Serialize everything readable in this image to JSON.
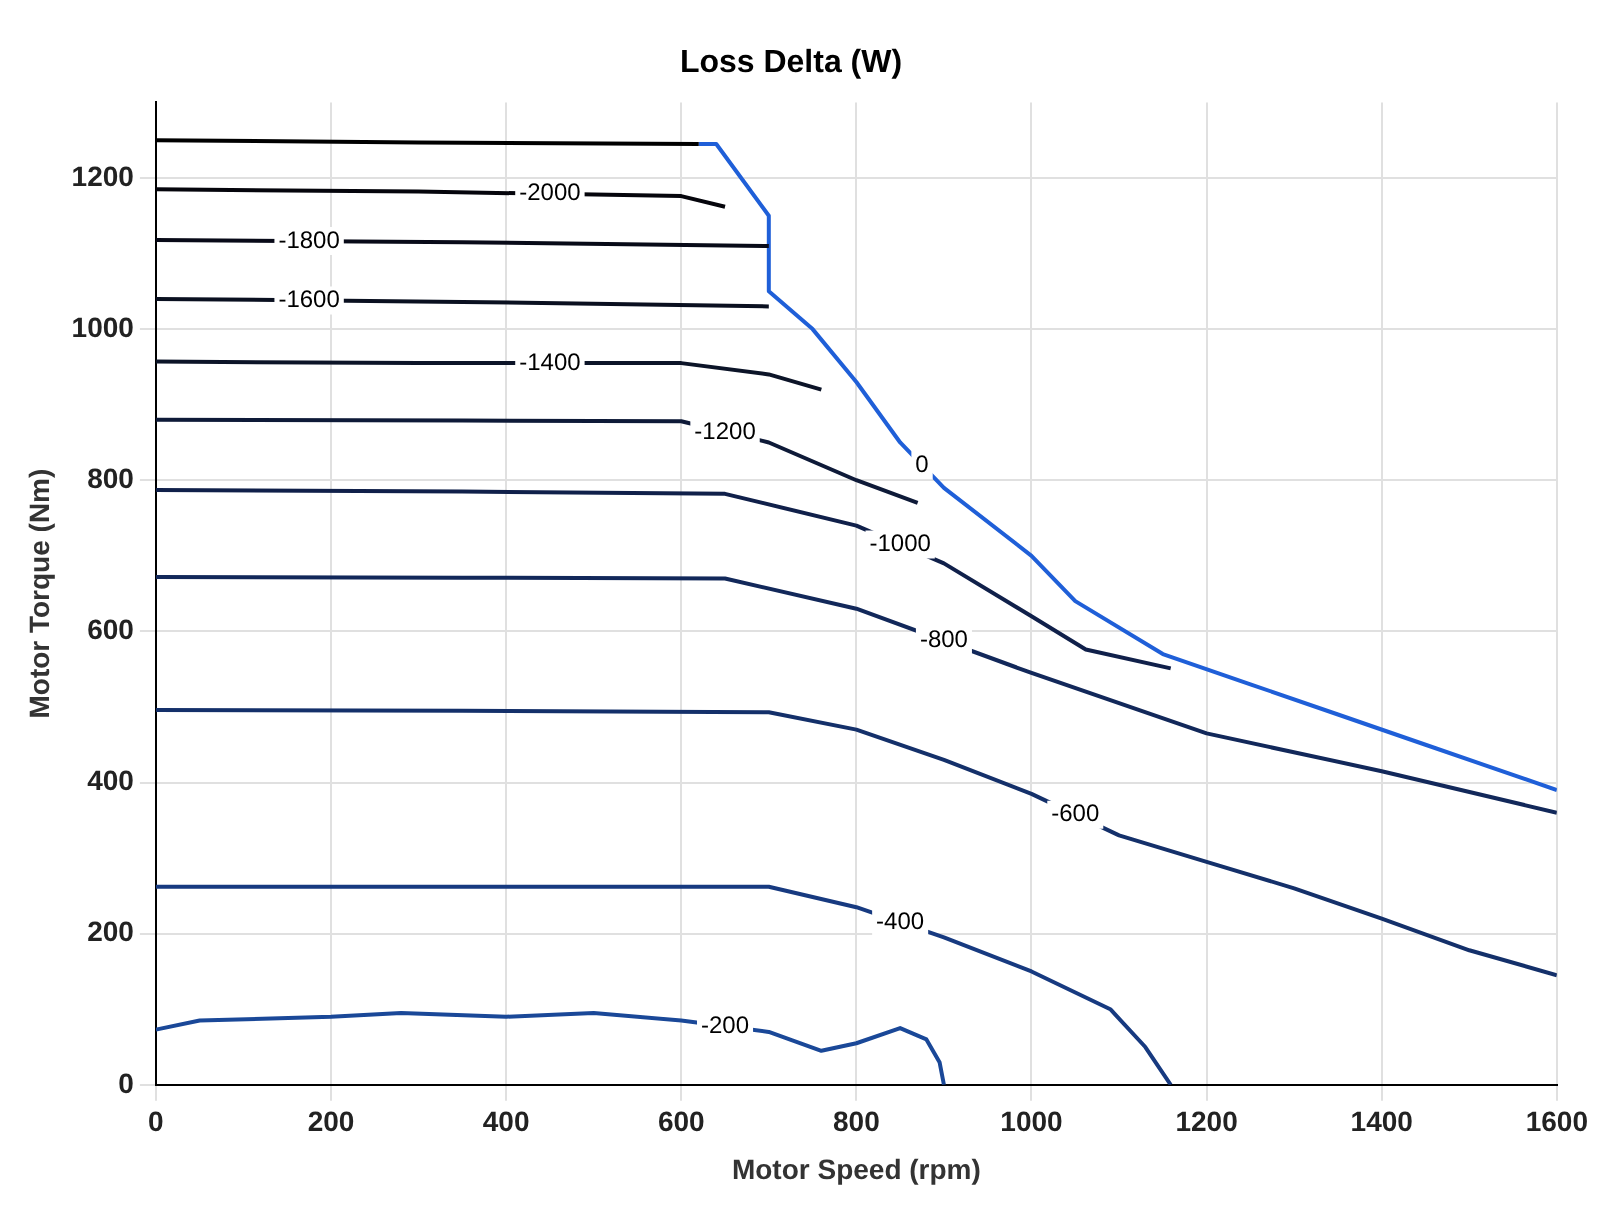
{
  "chart_data": {
    "type": "line",
    "title": "Loss Delta (W)",
    "xlabel": "Motor Speed (rpm)",
    "ylabel": "Motor Torque (Nm)",
    "xlim": [
      0,
      1600
    ],
    "ylim": [
      0,
      1300
    ],
    "xticks": [
      0,
      200,
      400,
      600,
      800,
      1000,
      1200,
      1400,
      1600
    ],
    "yticks": [
      0,
      200,
      400,
      600,
      800,
      1000,
      1200
    ],
    "grid": true,
    "legend": false,
    "marker": "none",
    "line_style": "solid",
    "series": [
      {
        "color": "#000000",
        "x": [
          0,
          300,
          620
        ],
        "values": [
          1250,
          1247,
          1245
        ]
      },
      {
        "name": "-2000",
        "color": "#05050c",
        "x": [
          0,
          300,
          600,
          650
        ],
        "values": [
          1185,
          1182,
          1176,
          1162
        ]
      },
      {
        "name": "-1800",
        "color": "#080a18",
        "x": [
          0,
          350,
          700
        ],
        "values": [
          1118,
          1115,
          1110
        ]
      },
      {
        "name": "-1600",
        "color": "#0a1020",
        "x": [
          0,
          350,
          700
        ],
        "values": [
          1040,
          1036,
          1030
        ]
      },
      {
        "name": "-1400",
        "color": "#0c1428",
        "x": [
          0,
          300,
          600,
          700,
          760
        ],
        "values": [
          957,
          955,
          955,
          940,
          920
        ]
      },
      {
        "name": "-1200",
        "color": "#0e1a38",
        "x": [
          0,
          350,
          600,
          700,
          800,
          870
        ],
        "values": [
          880,
          879,
          878,
          850,
          800,
          770
        ]
      },
      {
        "name": "-1000",
        "color": "#10204a",
        "x": [
          0,
          350,
          650,
          800,
          900,
          1000,
          1062,
          1159
        ],
        "values": [
          787,
          785,
          782,
          740,
          690,
          620,
          576,
          551
        ]
      },
      {
        "name": "-800",
        "color": "#12285a",
        "x": [
          0,
          350,
          650,
          800,
          1000,
          1200,
          1400,
          1600
        ],
        "values": [
          672,
          671,
          670,
          630,
          545,
          465,
          415,
          360
        ]
      },
      {
        "name": "-600",
        "color": "#14306a",
        "x": [
          0,
          350,
          700,
          800,
          900,
          1000,
          1100,
          1200,
          1300,
          1400,
          1500,
          1600
        ],
        "values": [
          496,
          495,
          493,
          470,
          430,
          385,
          330,
          295,
          260,
          220,
          178,
          145
        ]
      },
      {
        "name": "-400",
        "color": "#173a80",
        "x": [
          0,
          350,
          700,
          800,
          900,
          1000,
          1090,
          1130,
          1159
        ],
        "values": [
          262,
          262,
          262,
          235,
          195,
          150,
          100,
          50,
          0
        ]
      },
      {
        "name": "-200",
        "color": "#1a4898",
        "x": [
          0,
          50,
          200,
          280,
          400,
          500,
          600,
          700,
          760,
          800,
          850,
          880,
          895,
          900
        ],
        "values": [
          73,
          85,
          90,
          95,
          90,
          95,
          85,
          70,
          45,
          55,
          75,
          60,
          30,
          0
        ]
      },
      {
        "name": "0",
        "color": "#1f5fd8",
        "x": [
          620,
          640,
          700,
          700,
          750,
          800,
          850,
          900,
          1000,
          1050,
          1150,
          1250,
          1350,
          1450,
          1600
        ],
        "values": [
          1245,
          1245,
          1150,
          1050,
          1000,
          930,
          850,
          790,
          700,
          640,
          570,
          530,
          490,
          450,
          390
        ]
      }
    ]
  }
}
